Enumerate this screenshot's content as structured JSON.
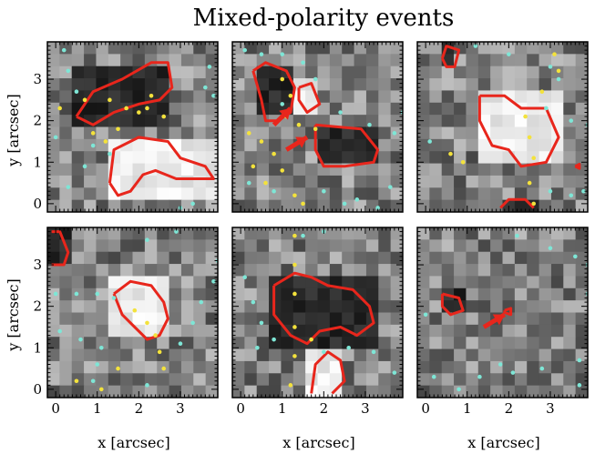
{
  "chart_data": {
    "type": "heatmap",
    "title": "Mixed-polarity events",
    "xlabel": "x [arcsec]",
    "ylabel": "y [arcsec]",
    "xlim": [
      -0.2,
      3.9
    ],
    "ylim": [
      -0.2,
      3.9
    ],
    "xticks": [
      "0",
      "1",
      "2",
      "3"
    ],
    "yticks": [
      "0",
      "1",
      "2",
      "3"
    ],
    "grid": false,
    "colors": {
      "contour": "#e8261c",
      "dots_yellow": "#f3e23c",
      "dots_cyan": "#7ee6d6",
      "arrow": "#e8261c"
    },
    "panels": [
      {
        "name": "panel-1",
        "contours": [
          [
            [
              0.5,
              2.1
            ],
            [
              0.9,
              2.7
            ],
            [
              1.6,
              3.0
            ],
            [
              2.3,
              3.4
            ],
            [
              2.7,
              3.4
            ],
            [
              2.8,
              2.8
            ],
            [
              2.5,
              2.5
            ],
            [
              2.0,
              2.4
            ],
            [
              1.4,
              2.2
            ],
            [
              0.9,
              1.9
            ],
            [
              0.5,
              2.1
            ]
          ],
          [
            [
              1.3,
              0.5
            ],
            [
              1.4,
              1.3
            ],
            [
              2.0,
              1.6
            ],
            [
              2.7,
              1.5
            ],
            [
              3.0,
              1.1
            ],
            [
              3.6,
              0.9
            ],
            [
              3.8,
              0.6
            ],
            [
              2.9,
              0.6
            ],
            [
              2.4,
              0.8
            ],
            [
              2.1,
              0.7
            ],
            [
              1.8,
              0.3
            ],
            [
              1.5,
              0.2
            ],
            [
              1.3,
              0.5
            ]
          ]
        ],
        "dots_yellow": [
          [
            0.1,
            2.3
          ],
          [
            0.7,
            2.5
          ],
          [
            1.3,
            2.5
          ],
          [
            1.7,
            2.3
          ],
          [
            2.0,
            2.2
          ],
          [
            2.2,
            2.3
          ],
          [
            2.6,
            2.1
          ],
          [
            0.9,
            1.7
          ],
          [
            1.2,
            1.5
          ],
          [
            1.5,
            1.8
          ],
          [
            2.3,
            2.6
          ]
        ],
        "dots_cyan": [
          [
            0.2,
            3.7
          ],
          [
            0.3,
            3.2
          ],
          [
            0.5,
            2.7
          ],
          [
            0.9,
            1.4
          ],
          [
            1.3,
            1.2
          ],
          [
            0.7,
            0.9
          ],
          [
            0.3,
            0.4
          ],
          [
            3.3,
            0.0
          ],
          [
            3.0,
            -0.1
          ],
          [
            3.7,
            3.3
          ],
          [
            3.6,
            2.8
          ],
          [
            3.8,
            2.6
          ],
          [
            0.0,
            1.6
          ]
        ],
        "arrows": []
      },
      {
        "name": "panel-2",
        "contours": [
          [
            [
              0.3,
              3.2
            ],
            [
              0.6,
              3.4
            ],
            [
              1.1,
              3.2
            ],
            [
              1.3,
              2.8
            ],
            [
              1.2,
              2.2
            ],
            [
              0.9,
              2.0
            ],
            [
              0.6,
              2.0
            ],
            [
              0.5,
              2.5
            ],
            [
              0.3,
              3.2
            ]
          ],
          [
            [
              1.4,
              2.8
            ],
            [
              1.7,
              2.9
            ],
            [
              1.9,
              2.4
            ],
            [
              1.6,
              2.2
            ],
            [
              1.4,
              2.5
            ],
            [
              1.4,
              2.8
            ]
          ],
          [
            [
              1.8,
              1.9
            ],
            [
              2.9,
              1.8
            ],
            [
              3.3,
              1.3
            ],
            [
              3.2,
              1.0
            ],
            [
              2.5,
              0.9
            ],
            [
              2.0,
              0.9
            ],
            [
              1.8,
              1.3
            ],
            [
              1.8,
              1.9
            ]
          ]
        ],
        "dots_yellow": [
          [
            1.0,
            3.0
          ],
          [
            1.2,
            2.6
          ],
          [
            1.1,
            2.1
          ],
          [
            1.4,
            1.9
          ],
          [
            1.8,
            1.8
          ],
          [
            0.2,
            1.7
          ],
          [
            0.5,
            1.5
          ],
          [
            0.8,
            1.2
          ],
          [
            1.0,
            0.8
          ],
          [
            1.3,
            0.2
          ],
          [
            1.5,
            0.0
          ],
          [
            0.3,
            0.9
          ],
          [
            0.6,
            0.5
          ]
        ],
        "dots_cyan": [
          [
            0.1,
            3.7
          ],
          [
            0.5,
            3.6
          ],
          [
            1.0,
            3.6
          ],
          [
            1.5,
            3.4
          ],
          [
            1.8,
            3.0
          ],
          [
            1.0,
            2.4
          ],
          [
            2.4,
            2.2
          ],
          [
            3.1,
            1.9
          ],
          [
            3.7,
            1.7
          ],
          [
            3.9,
            2.2
          ],
          [
            0.2,
            0.5
          ],
          [
            0.8,
            0.3
          ],
          [
            2.0,
            0.3
          ],
          [
            2.5,
            0.0
          ],
          [
            2.8,
            0.1
          ],
          [
            3.3,
            -0.1
          ],
          [
            3.6,
            0.4
          ]
        ],
        "arrows": [
          [
            0.8,
            1.9,
            1.2,
            2.3
          ],
          [
            1.1,
            1.3,
            1.6,
            1.6
          ]
        ]
      },
      {
        "name": "panel-3",
        "contours": [
          [
            [
              0.4,
              3.5
            ],
            [
              0.5,
              3.8
            ],
            [
              0.8,
              3.7
            ],
            [
              0.7,
              3.3
            ],
            [
              0.5,
              3.3
            ],
            [
              0.4,
              3.5
            ]
          ],
          [
            [
              1.3,
              2.6
            ],
            [
              1.9,
              2.6
            ],
            [
              2.3,
              2.3
            ],
            [
              2.9,
              2.3
            ],
            [
              3.2,
              1.6
            ],
            [
              2.9,
              1.0
            ],
            [
              2.3,
              0.9
            ],
            [
              2.0,
              1.3
            ],
            [
              1.6,
              1.4
            ],
            [
              1.3,
              2.0
            ],
            [
              1.3,
              2.6
            ]
          ],
          [
            [
              1.8,
              -0.1
            ],
            [
              2.0,
              0.1
            ],
            [
              2.4,
              0.1
            ],
            [
              2.6,
              -0.1
            ]
          ],
          [
            [
              3.6,
              0.9
            ],
            [
              3.7,
              0.95
            ],
            [
              3.7,
              0.85
            ],
            [
              3.6,
              0.9
            ]
          ]
        ],
        "dots_yellow": [
          [
            2.4,
            2.1
          ],
          [
            2.5,
            1.6
          ],
          [
            2.6,
            1.1
          ],
          [
            2.5,
            0.5
          ],
          [
            2.6,
            0.0
          ],
          [
            0.6,
            1.2
          ],
          [
            0.9,
            1.0
          ],
          [
            3.2,
            3.2
          ],
          [
            3.1,
            3.6
          ],
          [
            2.8,
            2.7
          ]
        ],
        "dots_cyan": [
          [
            1.2,
            3.8
          ],
          [
            2.0,
            3.6
          ],
          [
            3.0,
            3.3
          ],
          [
            3.2,
            3.0
          ],
          [
            2.9,
            2.3
          ],
          [
            3.5,
            2.0
          ],
          [
            3.9,
            1.9
          ],
          [
            0.1,
            1.5
          ],
          [
            3.0,
            0.3
          ],
          [
            3.5,
            0.2
          ],
          [
            3.8,
            0.3
          ]
        ],
        "arrows": []
      },
      {
        "name": "panel-4",
        "contours": [
          [
            [
              -0.1,
              3.8
            ],
            [
              0.1,
              3.8
            ],
            [
              0.3,
              3.3
            ],
            [
              0.2,
              3.0
            ],
            [
              -0.1,
              3.0
            ]
          ],
          [
            [
              1.4,
              2.3
            ],
            [
              1.8,
              2.6
            ],
            [
              2.3,
              2.5
            ],
            [
              2.6,
              2.1
            ],
            [
              2.7,
              1.7
            ],
            [
              2.5,
              1.3
            ],
            [
              2.2,
              1.2
            ],
            [
              1.9,
              1.5
            ],
            [
              1.6,
              1.8
            ],
            [
              1.4,
              2.3
            ]
          ]
        ],
        "dots_yellow": [
          [
            1.9,
            1.9
          ],
          [
            2.2,
            1.6
          ],
          [
            2.4,
            1.3
          ],
          [
            2.5,
            0.9
          ],
          [
            2.6,
            0.5
          ],
          [
            1.5,
            0.5
          ],
          [
            0.5,
            0.2
          ],
          [
            1.1,
            0.0
          ]
        ],
        "dots_cyan": [
          [
            0.0,
            2.3
          ],
          [
            0.5,
            2.3
          ],
          [
            1.0,
            2.3
          ],
          [
            1.4,
            2.2
          ],
          [
            0.1,
            1.4
          ],
          [
            0.6,
            1.2
          ],
          [
            1.1,
            1.0
          ],
          [
            1.0,
            0.6
          ],
          [
            0.9,
            0.2
          ],
          [
            2.2,
            0.1
          ],
          [
            3.0,
            1.1
          ],
          [
            3.3,
            1.6
          ],
          [
            3.5,
            2.1
          ],
          [
            3.8,
            2.6
          ],
          [
            3.9,
            3.1
          ],
          [
            2.2,
            3.6
          ],
          [
            2.9,
            3.8
          ]
        ],
        "arrows": []
      },
      {
        "name": "panel-5",
        "contours": [
          [
            [
              0.8,
              2.5
            ],
            [
              1.3,
              2.8
            ],
            [
              1.7,
              2.7
            ],
            [
              2.1,
              2.5
            ],
            [
              2.7,
              2.4
            ],
            [
              3.1,
              2.0
            ],
            [
              3.2,
              1.6
            ],
            [
              2.8,
              1.3
            ],
            [
              2.4,
              1.5
            ],
            [
              1.9,
              1.4
            ],
            [
              1.6,
              1.1
            ],
            [
              1.2,
              1.3
            ],
            [
              0.8,
              1.8
            ],
            [
              0.8,
              2.5
            ]
          ],
          [
            [
              1.7,
              -0.1
            ],
            [
              1.8,
              0.6
            ],
            [
              2.1,
              0.9
            ],
            [
              2.4,
              0.7
            ],
            [
              2.5,
              0.2
            ],
            [
              2.2,
              -0.1
            ]
          ]
        ],
        "dots_yellow": [
          [
            1.3,
            3.7
          ],
          [
            1.3,
            3.0
          ],
          [
            1.3,
            2.3
          ],
          [
            1.3,
            1.5
          ],
          [
            1.3,
            0.8
          ],
          [
            1.2,
            0.1
          ],
          [
            1.7,
            1.2
          ]
        ],
        "dots_cyan": [
          [
            1.5,
            3.7
          ],
          [
            2.0,
            3.8
          ],
          [
            0.1,
            2.7
          ],
          [
            0.3,
            2.1
          ],
          [
            0.5,
            1.6
          ],
          [
            0.8,
            1.2
          ],
          [
            0.4,
            1.0
          ],
          [
            2.0,
            0.9
          ],
          [
            2.6,
            1.0
          ],
          [
            3.2,
            0.9
          ],
          [
            3.7,
            0.4
          ]
        ],
        "arrows": []
      },
      {
        "name": "panel-6",
        "contours": [
          [
            [
              0.4,
              2.3
            ],
            [
              0.8,
              2.2
            ],
            [
              0.9,
              1.9
            ],
            [
              0.6,
              1.8
            ],
            [
              0.4,
              2.0
            ],
            [
              0.4,
              2.3
            ]
          ],
          [
            [
              1.9,
              1.9
            ],
            [
              2.05,
              1.95
            ],
            [
              2.05,
              1.8
            ],
            [
              1.9,
              1.85
            ],
            [
              1.9,
              1.9
            ]
          ]
        ],
        "dots_yellow": [],
        "dots_cyan": [
          [
            2.2,
            3.7
          ],
          [
            3.0,
            3.4
          ],
          [
            3.6,
            3.2
          ],
          [
            3.9,
            3.0
          ],
          [
            0.0,
            1.8
          ],
          [
            0.2,
            0.3
          ],
          [
            0.8,
            0.0
          ],
          [
            1.3,
            0.3
          ],
          [
            1.8,
            0.6
          ],
          [
            2.1,
            0.4
          ],
          [
            2.8,
            0.5
          ],
          [
            3.7,
            0.7
          ],
          [
            3.7,
            0.1
          ],
          [
            3.9,
            2.3
          ]
        ],
        "arrows": [
          [
            1.4,
            1.5,
            1.9,
            1.8
          ]
        ]
      }
    ]
  }
}
